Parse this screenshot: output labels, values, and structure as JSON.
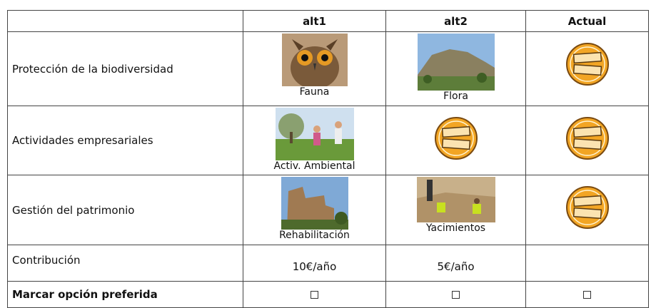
{
  "table": {
    "header": [
      "alt1",
      "alt2",
      "Actual"
    ],
    "rows": [
      {
        "label": "Protección de la biodiversidad",
        "alt1": "Fauna",
        "alt2": "Flora"
      },
      {
        "label": "Actividades empresariales",
        "alt1": "Activ. Ambiental"
      },
      {
        "label": "Gestión del patrimonio",
        "alt1": "Rehabilitación",
        "alt2": "Yacimientos"
      }
    ],
    "contribution": {
      "label": "Contribución",
      "values": [
        "10€/año",
        "5€/año"
      ]
    },
    "choice": {
      "label": "Marcar opción preferida"
    }
  }
}
